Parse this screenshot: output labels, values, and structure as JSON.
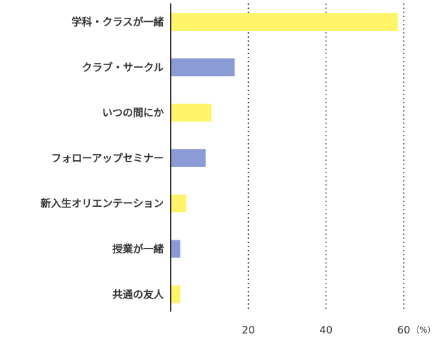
{
  "chart_data": {
    "type": "bar",
    "orientation": "horizontal",
    "categories": [
      "学科・クラスが一緒",
      "クラブ・サークル",
      "いつの間にか",
      "フォローアップセミナー",
      "新入生オリエンテーション",
      "授業が一緒",
      "共通の友人"
    ],
    "values": [
      58.5,
      16.5,
      10.5,
      9,
      4,
      2.5,
      2.5
    ],
    "bar_colors": [
      "#fff36a",
      "#8a9bd5",
      "#fff36a",
      "#8a9bd5",
      "#fff36a",
      "#8a9bd5",
      "#fff36a"
    ],
    "xlim": [
      0,
      60
    ],
    "xticks": [
      20,
      40,
      60
    ],
    "xtick_labels": [
      "20",
      "40",
      "60"
    ],
    "unit": "（%）",
    "grid": "vertical-dotted"
  }
}
